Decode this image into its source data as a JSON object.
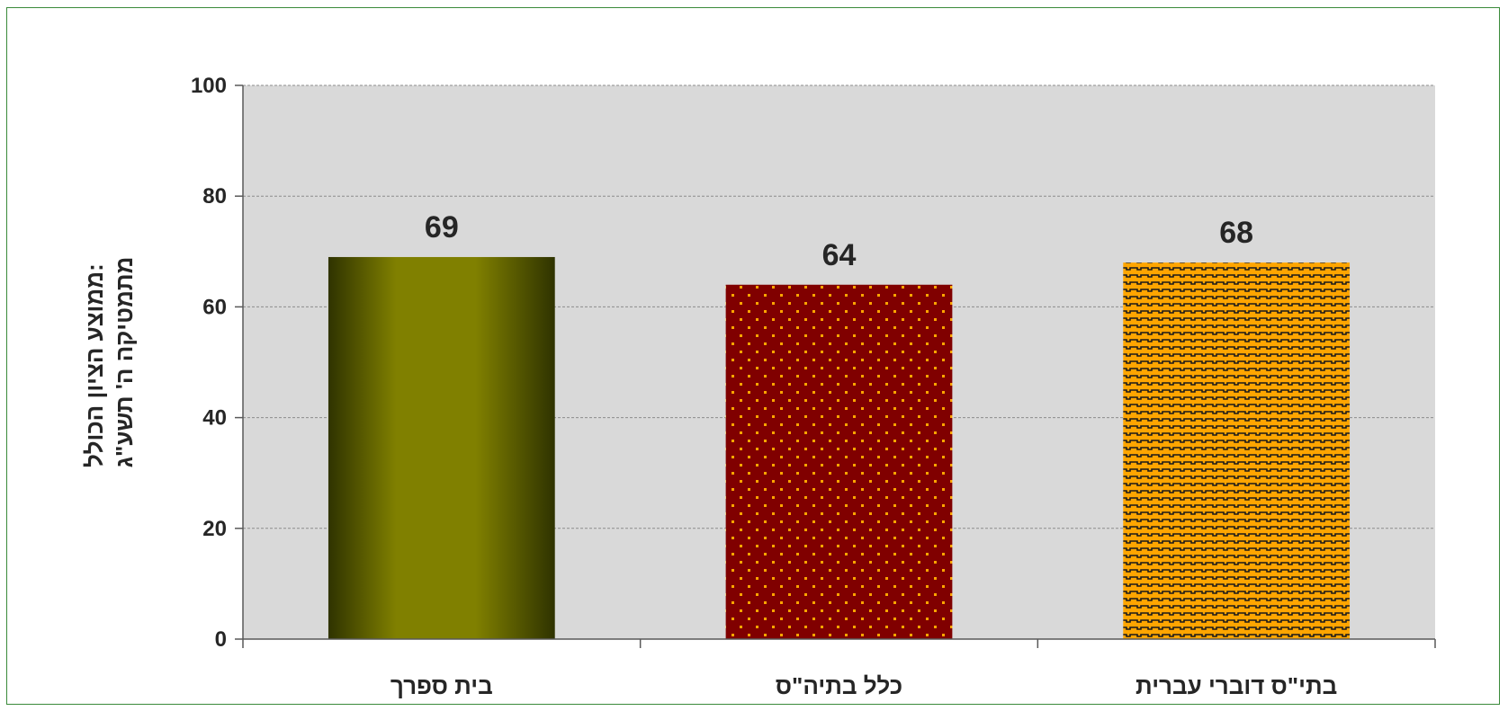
{
  "chart_data": {
    "type": "bar",
    "categories": [
      "בית ספרך",
      "כלל בתיה\"ס",
      "בתי\"ס דוברי עברית"
    ],
    "values": [
      69,
      64,
      68
    ],
    "ylabel_lines": [
      "ממוצע הציון הכולל:",
      "מתמטיקה ה' תשע\"ג"
    ],
    "ylim": [
      0,
      100
    ],
    "yticks": [
      0,
      20,
      40,
      60,
      80,
      100
    ],
    "grid": true,
    "legend": "none",
    "colors": {
      "plot_background": "#d9d9d9",
      "gridline": "#8c8c8c",
      "bar_1_dark": "#2f3300",
      "bar_1_light": "#808000",
      "bar_2_base": "#800000",
      "bar_2_dots": "#ffa500",
      "bar_3_base": "#ffa500",
      "bar_3_pattern": "#1a1a1a",
      "border": "#3a8a3a"
    }
  }
}
